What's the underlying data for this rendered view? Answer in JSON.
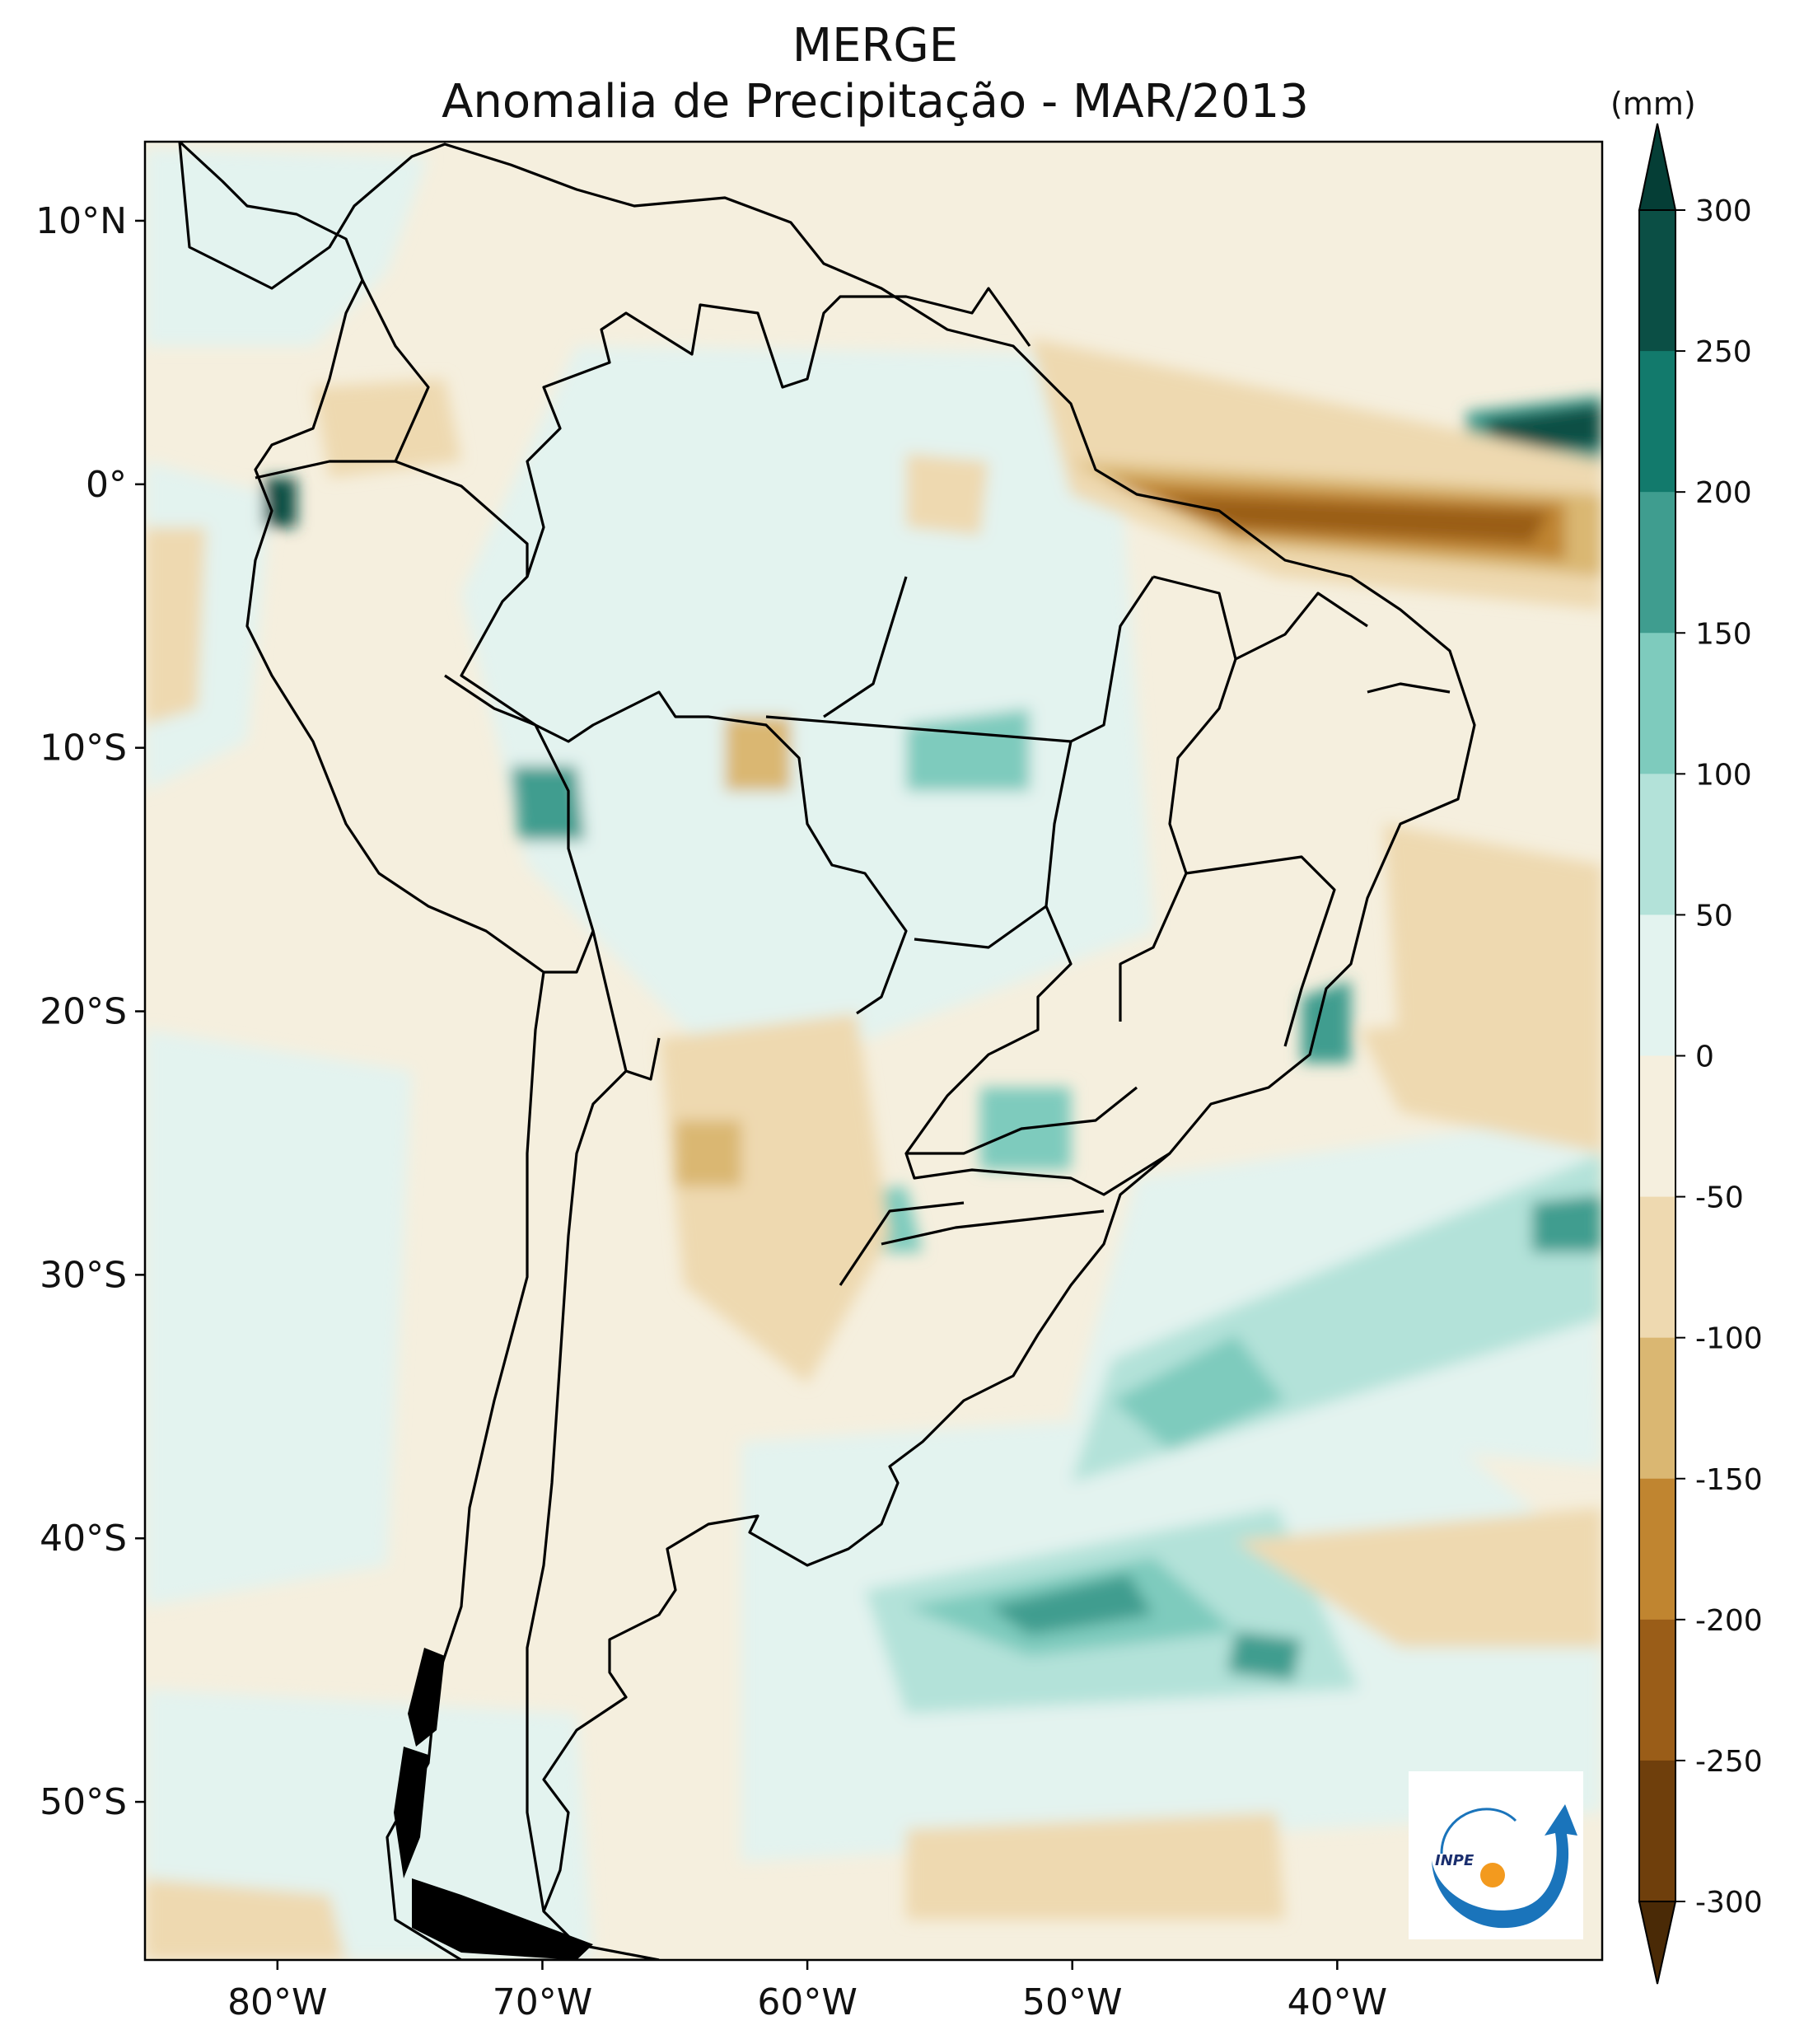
{
  "title": {
    "line1": "MERGE",
    "line2": "Anomalia de Precipitação - MAR/2013"
  },
  "map": {
    "lon_range": [
      -85,
      -30
    ],
    "lat_range": [
      -56,
      13
    ],
    "x_ticks": [
      {
        "lon": -80,
        "label": "80°W"
      },
      {
        "lon": -70,
        "label": "70°W"
      },
      {
        "lon": -60,
        "label": "60°W"
      },
      {
        "lon": -50,
        "label": "50°W"
      },
      {
        "lon": -40,
        "label": "40°W"
      }
    ],
    "y_ticks": [
      {
        "lat": 10,
        "label": "10°N"
      },
      {
        "lat": 0,
        "label": "0°"
      },
      {
        "lat": -10,
        "label": "10°S"
      },
      {
        "lat": -20,
        "label": "20°S"
      },
      {
        "lat": -30,
        "label": "30°S"
      },
      {
        "lat": -40,
        "label": "40°S"
      },
      {
        "lat": -50,
        "label": "50°S"
      }
    ]
  },
  "colorbar": {
    "unit": "(mm)",
    "ticks": [
      "300",
      "250",
      "200",
      "150",
      "100",
      "50",
      "0",
      "-50",
      "-100",
      "-150",
      "-200",
      "-250",
      "-300"
    ],
    "colors_top_to_bottom": [
      "#0b4f45",
      "#127a6c",
      "#3f9d8f",
      "#7ecbbd",
      "#b3e2d9",
      "#e3f3ef",
      "#f5efde",
      "#eed9b0",
      "#dab772",
      "#c08530",
      "#9a5d18",
      "#6f3f0c"
    ],
    "extend_top_color": "#053e36",
    "extend_bottom_color": "#4a2a06"
  },
  "logo": {
    "text": "INPE"
  }
}
